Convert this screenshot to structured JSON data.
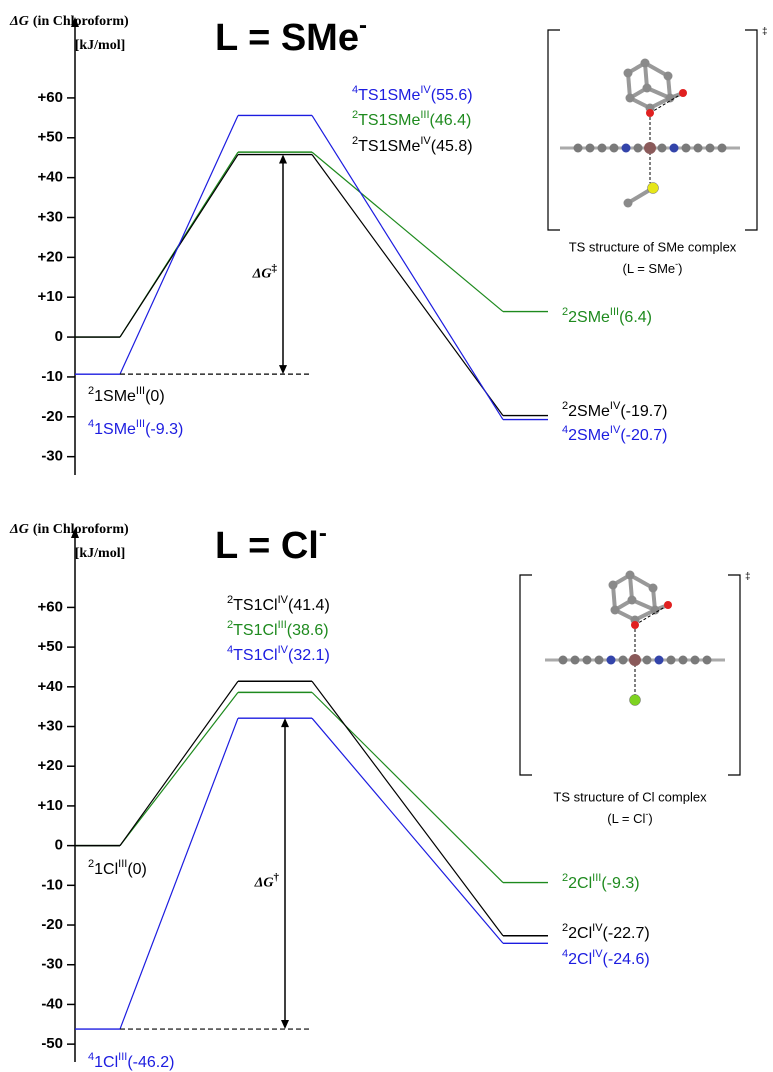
{
  "chart_data": [
    {
      "type": "line",
      "ylabel_symbol": "ΔG",
      "ylabel": "(in Chloroform)",
      "yunit": "[kJ/mol]",
      "title": "L = SMe",
      "title_sup": "-",
      "ylim": [
        -34.6,
        80.3
      ],
      "yticks": [
        {
          "value": 60,
          "label": "+60"
        },
        {
          "value": 50,
          "label": "+50"
        },
        {
          "value": 40,
          "label": "+40"
        },
        {
          "value": 30,
          "label": "+30"
        },
        {
          "value": 20,
          "label": "+20"
        },
        {
          "value": 10,
          "label": "+10"
        },
        0,
        -10,
        -20,
        -30
      ],
      "series": [
        {
          "color": "#000000",
          "values": [
            0,
            45.8,
            -19.7
          ],
          "labels": [
            {
              "spin": "2",
              "name": "1SMe",
              "ox": "III"
            },
            {
              "spin": "2",
              "name": "TS1SMe",
              "ox": "IV"
            },
            {
              "spin": "2",
              "name": "2SMe",
              "ox": "IV"
            }
          ],
          "value_labels": [
            "(0)",
            "(45.8)",
            "(-19.7)"
          ]
        },
        {
          "color": "#1e8a1e",
          "values": [
            0,
            46.4,
            6.4
          ],
          "labels": [
            null,
            {
              "spin": "2",
              "name": "TS1SMe",
              "ox": "III"
            },
            {
              "spin": "2",
              "name": "2SMe",
              "ox": "III"
            }
          ],
          "value_labels": [
            null,
            "(46.4)",
            "(6.4)"
          ]
        },
        {
          "color": "#1c1ce0",
          "values": [
            -9.3,
            55.6,
            -20.7
          ],
          "labels": [
            {
              "spin": "4",
              "name": "1SMe",
              "ox": "III"
            },
            {
              "spin": "4",
              "name": "TS1SMe",
              "ox": "IV"
            },
            {
              "spin": "4",
              "name": "2SMe",
              "ox": "IV"
            }
          ],
          "value_labels": [
            "(-9.3)",
            "(55.6)",
            "(-20.7)"
          ]
        }
      ],
      "annotation": {
        "symbol": "ΔG",
        "sup": "‡"
      },
      "inset": {
        "mark": "‡",
        "caption": "TS structure of SMe complex",
        "caption_sub": "(L = SMe",
        "caption_sub_sup": "-",
        "caption_sub_end": ")"
      }
    },
    {
      "type": "line",
      "ylabel_symbol": "ΔG",
      "ylabel": "(in Chloroform)",
      "yunit": "[kJ/mol]",
      "title": "L = Cl",
      "title_sup": "-",
      "ylim": [
        -54.5,
        80
      ],
      "yticks": [
        {
          "value": 60,
          "label": "+60"
        },
        {
          "value": 50,
          "label": "+50"
        },
        {
          "value": 40,
          "label": "+40"
        },
        {
          "value": 30,
          "label": "+30"
        },
        {
          "value": 20,
          "label": "+20"
        },
        {
          "value": 10,
          "label": "+10"
        },
        0,
        -10,
        -20,
        -30,
        -40,
        -50
      ],
      "series": [
        {
          "color": "#000000",
          "values": [
            0,
            41.4,
            -22.7
          ],
          "labels": [
            {
              "spin": "2",
              "name": "1Cl",
              "ox": "III"
            },
            {
              "spin": "2",
              "name": "TS1Cl",
              "ox": "IV"
            },
            {
              "spin": "2",
              "name": "2Cl",
              "ox": "IV"
            }
          ],
          "value_labels": [
            "(0)",
            "(41.4)",
            "(-22.7)"
          ]
        },
        {
          "color": "#1e8a1e",
          "values": [
            0,
            38.6,
            -9.3
          ],
          "labels": [
            null,
            {
              "spin": "2",
              "name": "TS1Cl",
              "ox": "III"
            },
            {
              "spin": "2",
              "name": "2Cl",
              "ox": "III"
            }
          ],
          "value_labels": [
            null,
            "(38.6)",
            "(-9.3)"
          ]
        },
        {
          "color": "#1c1ce0",
          "values": [
            -46.2,
            32.1,
            -24.6
          ],
          "labels": [
            {
              "spin": "4",
              "name": "1Cl",
              "ox": "III"
            },
            {
              "spin": "4",
              "name": "TS1Cl",
              "ox": "IV"
            },
            {
              "spin": "4",
              "name": "2Cl",
              "ox": "IV"
            }
          ],
          "value_labels": [
            "(-46.2)",
            "(32.1)",
            "(-24.6)"
          ]
        }
      ],
      "annotation": {
        "symbol": "ΔG",
        "sup": "†"
      },
      "inset": {
        "mark": "‡",
        "caption": "TS structure of Cl complex",
        "caption_sub": "(L = Cl",
        "caption_sub_sup": "-",
        "caption_sub_end": ")"
      }
    }
  ]
}
